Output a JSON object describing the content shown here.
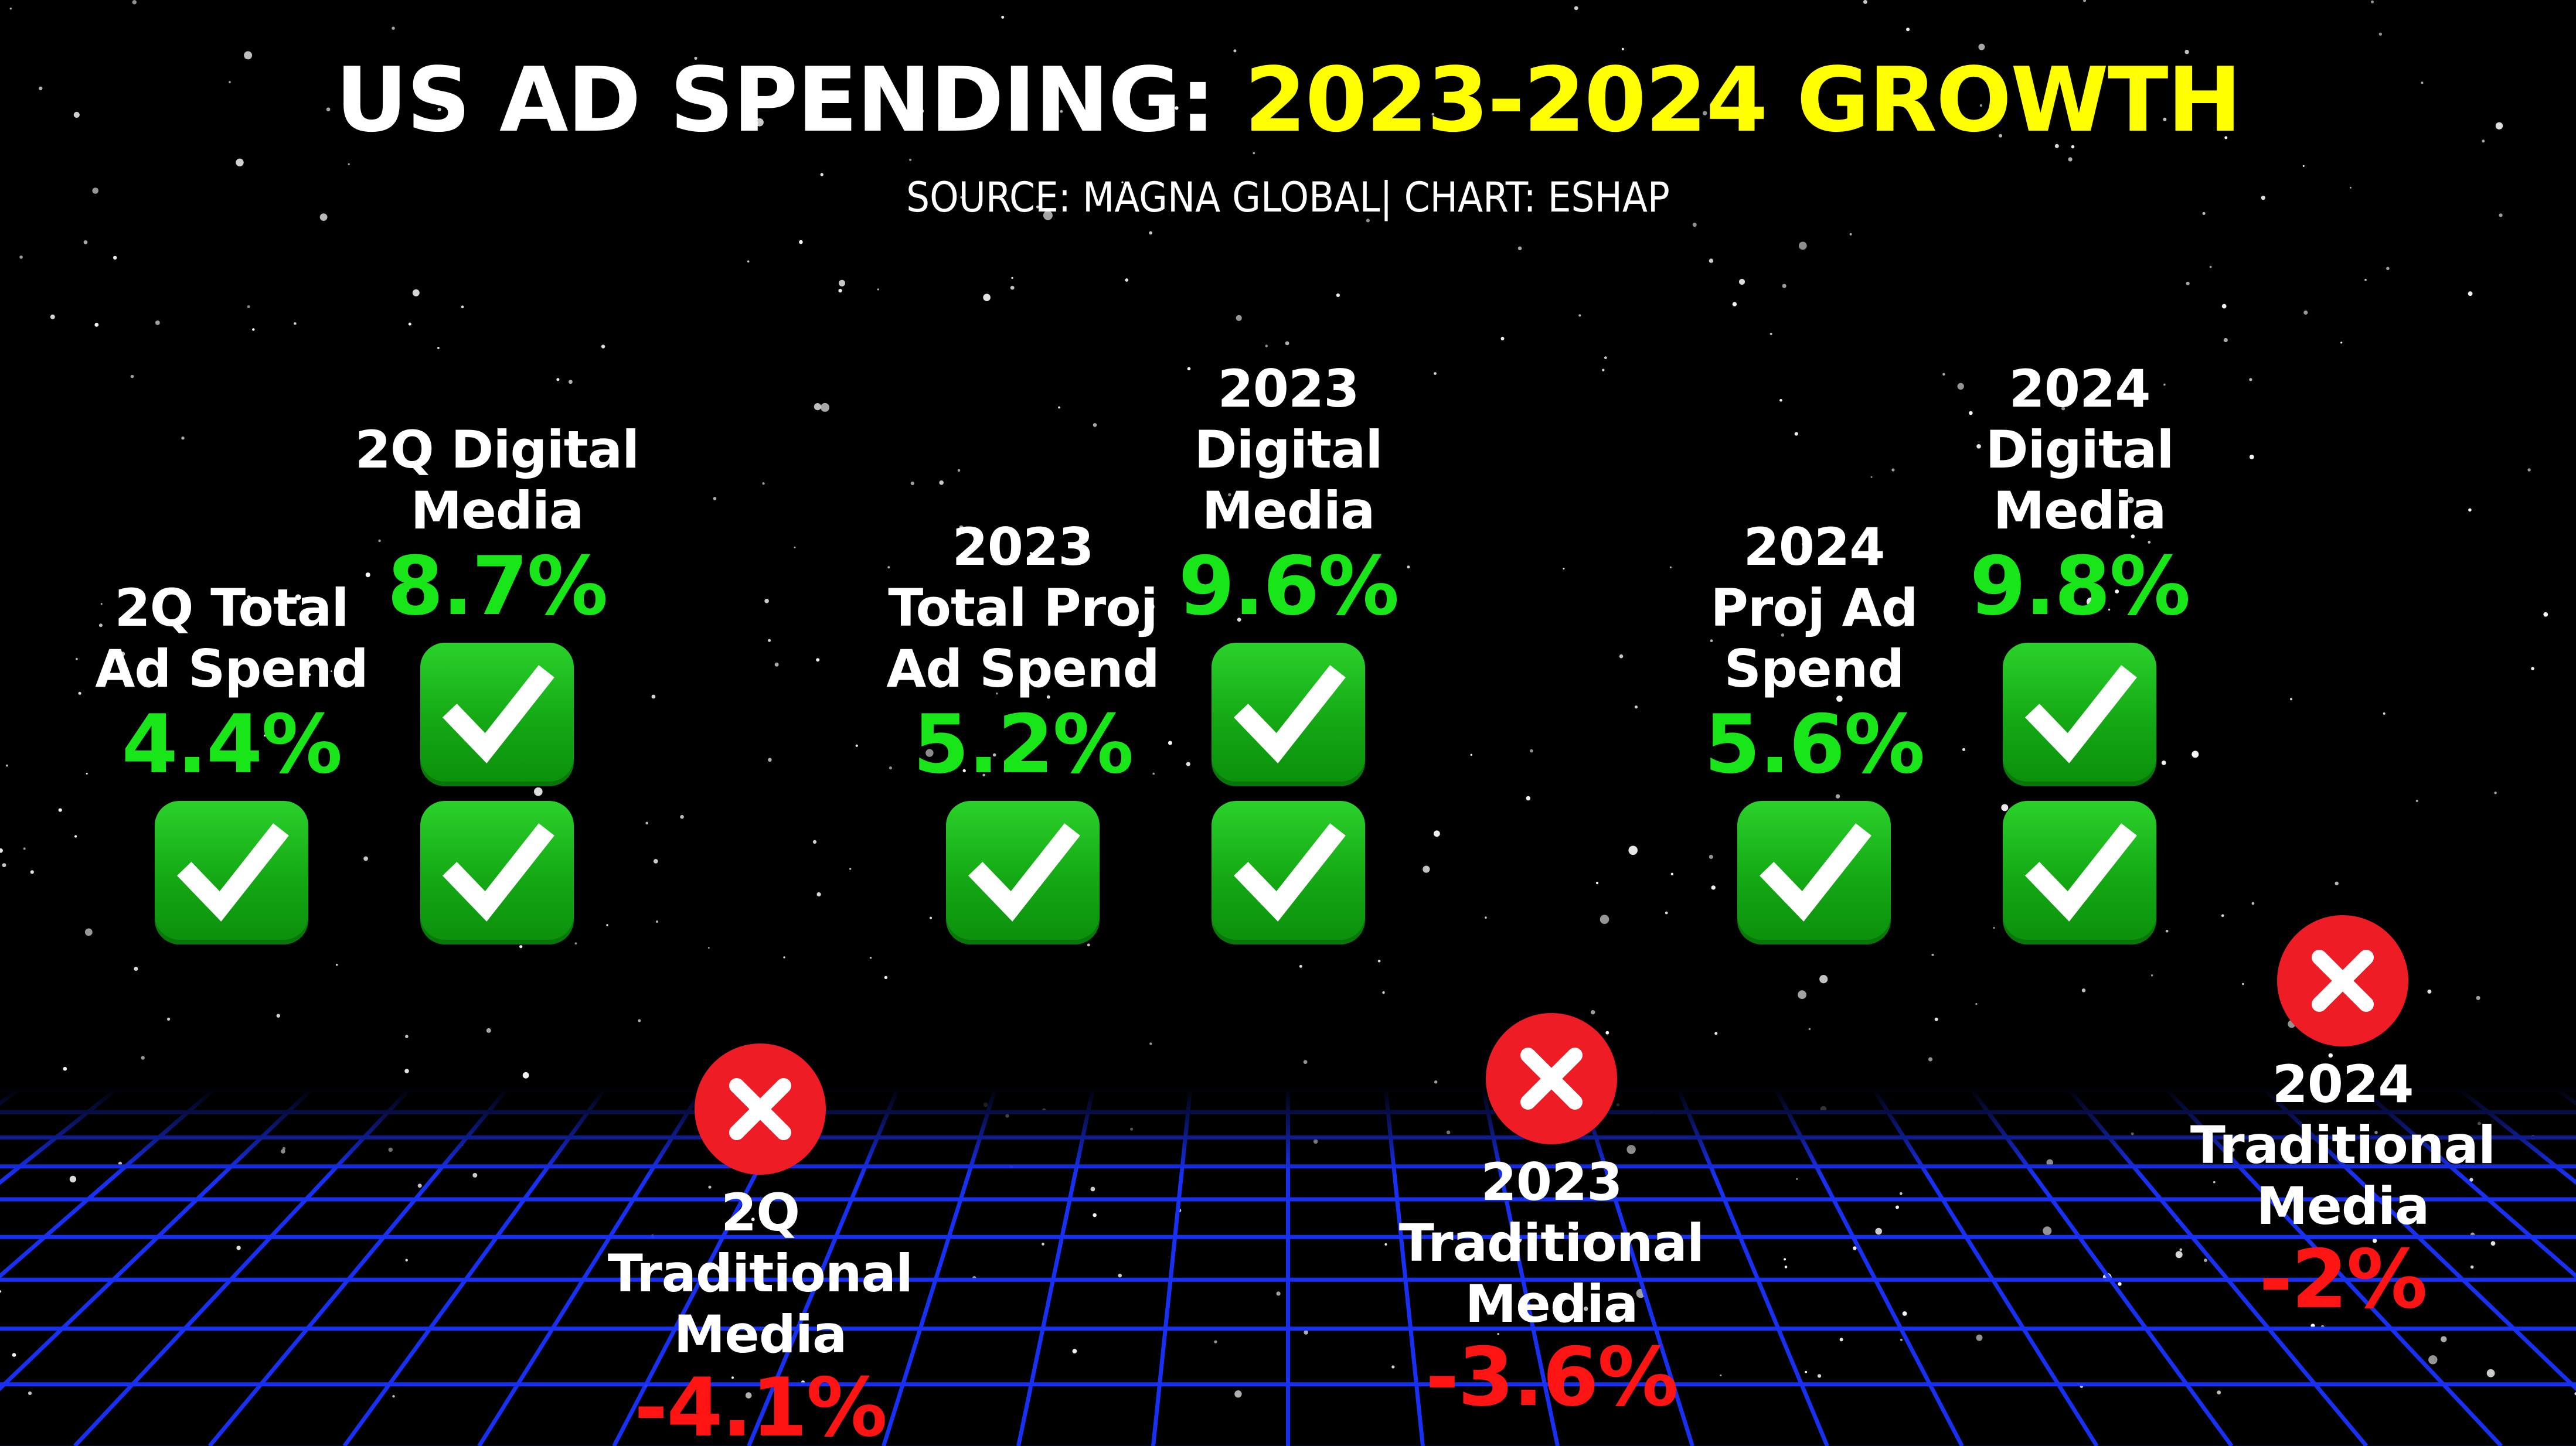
{
  "header": {
    "title_white": "US AD SPENDING:",
    "title_yellow": "2023-2024 GROWTH",
    "source": "SOURCE: MAGNA GLOBAL| CHART: ESHAP"
  },
  "colors": {
    "background": "#000000",
    "title_accent": "#ffff00",
    "positive": "#19e619",
    "negative": "#ff1414",
    "check_green": "#14a814",
    "cross_red": "#ee1c24",
    "grid_blue": "#1a33ff"
  },
  "chart_data": {
    "type": "bar",
    "units": "percent growth",
    "categories": [
      "2Q Total Ad Spend",
      "2Q Digital Media",
      "2Q Traditional Media",
      "2023 Total Proj Ad Spend",
      "2023 Digital Media",
      "2023 Traditional Media",
      "2024 Proj Ad Spend",
      "2024 Digital Media",
      "2024 Traditional Media"
    ],
    "values": [
      4.4,
      8.7,
      -4.1,
      5.2,
      9.6,
      -3.6,
      5.6,
      9.8,
      -2
    ],
    "items": [
      {
        "label": "2Q Total\nAd Spend",
        "value_text": "4.4%",
        "value": 4.4,
        "icon": "check-mark-icon"
      },
      {
        "label": "2Q Digital\nMedia",
        "value_text": "8.7%",
        "value": 8.7,
        "icon": "check-mark-icon"
      },
      {
        "label": "2Q\nTraditional\nMedia",
        "value_text": "-4.1%",
        "value": -4.1,
        "icon": "cross-mark-icon"
      },
      {
        "label": "2023\nTotal Proj\nAd Spend",
        "value_text": "5.2%",
        "value": 5.2,
        "icon": "check-mark-icon"
      },
      {
        "label": "2023\nDigital\nMedia",
        "value_text": "9.6%",
        "value": 9.6,
        "icon": "check-mark-icon"
      },
      {
        "label": "2023\nTraditional\nMedia",
        "value_text": "-3.6%",
        "value": -3.6,
        "icon": "cross-mark-icon"
      },
      {
        "label": "2024\nProj Ad\nSpend",
        "value_text": "5.6%",
        "value": 5.6,
        "icon": "check-mark-icon"
      },
      {
        "label": "2024\nDigital\nMedia",
        "value_text": "9.8%",
        "value": 9.8,
        "icon": "check-mark-icon"
      },
      {
        "label": "2024\nTraditional\nMedia",
        "value_text": "-2%",
        "value": -2,
        "icon": "cross-mark-icon"
      }
    ]
  }
}
